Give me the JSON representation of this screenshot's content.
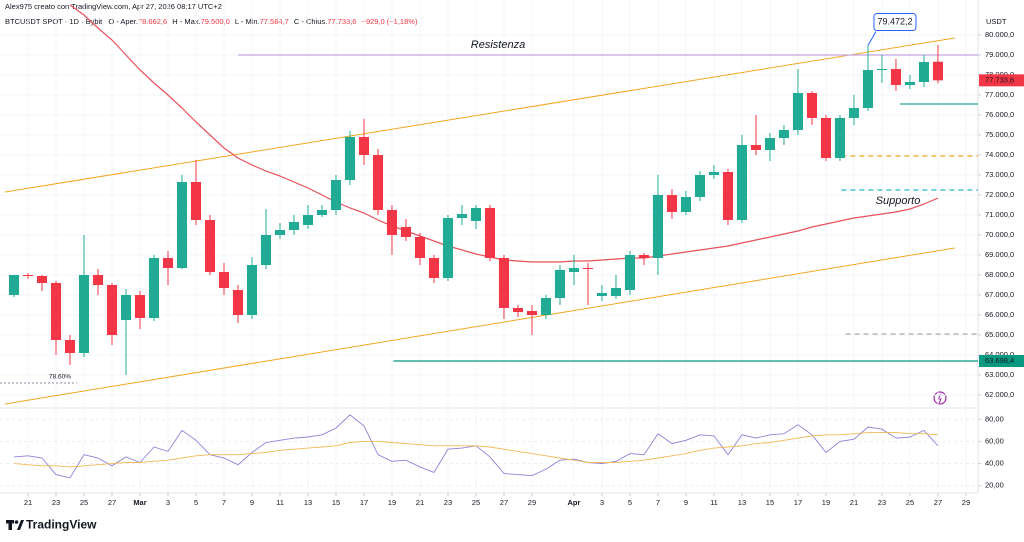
{
  "header": {
    "author_line": "Alex975 creato con TradingView.com, Apr 27, 2026 08:17 UTC+2",
    "symbol": "BTCUSDT SPOT · 1D · Bybit",
    "ohlc": [
      {
        "label": "O - Aper.",
        "value": "78.662,6"
      },
      {
        "label": "H - Max.",
        "value": "79.500,0"
      },
      {
        "label": "L - Min.",
        "value": "77.584,7"
      },
      {
        "label": "C - Chius.",
        "value": "77.733,6"
      }
    ],
    "change": "−929,0 (−1,18%)"
  },
  "footer": {
    "logo": "TradingView"
  },
  "chart_data": [
    {
      "type": "candlestick",
      "y_axis_title": "USDT",
      "up_color": "#22ab94",
      "down_color": "#f23645",
      "grid": true,
      "x": [
        -1,
        0,
        1,
        2,
        3,
        4,
        5,
        6,
        7,
        8,
        9,
        10,
        11,
        12,
        13,
        14,
        15,
        16,
        17,
        18,
        19,
        20,
        21,
        22,
        23,
        24,
        25,
        26,
        27,
        28,
        29,
        30,
        31,
        32,
        33,
        34,
        35,
        36,
        37,
        38,
        39,
        40,
        41,
        42,
        43,
        44,
        45,
        46,
        47,
        48,
        49,
        50,
        51,
        52,
        53,
        54,
        55,
        56,
        57,
        58,
        59,
        60,
        61,
        62,
        63,
        64,
        65
      ],
      "open": [
        67000,
        68000,
        67950,
        67600,
        64750,
        64100,
        68000,
        67500,
        65750,
        67000,
        65850,
        68850,
        68350,
        72650,
        70750,
        68150,
        67250,
        66000,
        68500,
        70000,
        70250,
        70500,
        71000,
        71250,
        72750,
        74900,
        74000,
        71250,
        70400,
        69900,
        68850,
        67850,
        70850,
        70700,
        71350,
        68850,
        66350,
        66200,
        66000,
        66850,
        68150,
        68350,
        66950,
        66950,
        67250,
        69000,
        68850,
        72000,
        71150,
        71900,
        73000,
        73150,
        70750,
        74500,
        74250,
        74850,
        75250,
        77100,
        75850,
        73850,
        75850,
        76350,
        78250,
        78300,
        77500,
        77650,
        78662.6
      ],
      "high": [
        68000,
        68100,
        68000,
        67700,
        65000,
        70000,
        68300,
        67600,
        67300,
        67200,
        69000,
        69200,
        73000,
        73750,
        71000,
        68600,
        67500,
        68900,
        71300,
        70600,
        71000,
        71500,
        71500,
        73000,
        75200,
        75800,
        74300,
        71500,
        70800,
        70100,
        69000,
        71000,
        71500,
        71500,
        71500,
        69000,
        66500,
        66500,
        67000,
        68500,
        69000,
        68600,
        67500,
        68000,
        69200,
        69100,
        73000,
        72300,
        72200,
        73200,
        73500,
        73300,
        75000,
        76000,
        75100,
        75500,
        78300,
        77200,
        76000,
        76000,
        77000,
        79472.2,
        79000,
        78800,
        78000,
        79000,
        79500
      ],
      "low": [
        66900,
        67800,
        67200,
        64000,
        63500,
        63900,
        67000,
        64500,
        63000,
        65300,
        65700,
        67500,
        68300,
        70500,
        68000,
        67000,
        65600,
        65800,
        68300,
        69800,
        70000,
        70300,
        70900,
        71000,
        72500,
        73500,
        71000,
        69000,
        69700,
        68500,
        67600,
        67700,
        70500,
        70300,
        68700,
        65800,
        65900,
        65000,
        65800,
        66500,
        67500,
        66500,
        66700,
        66800,
        67000,
        68500,
        68000,
        70800,
        71000,
        71700,
        72800,
        70500,
        70600,
        74000,
        73700,
        74500,
        75000,
        75500,
        73700,
        73700,
        75500,
        76200,
        77600,
        77200,
        77300,
        77400,
        77584.7
      ],
      "close": [
        68000,
        67950,
        67600,
        64750,
        64100,
        68000,
        67500,
        65000,
        67000,
        65850,
        68850,
        68350,
        72650,
        70750,
        68150,
        67350,
        66000,
        68500,
        70000,
        70250,
        70650,
        71000,
        71250,
        72750,
        74900,
        74000,
        71250,
        70000,
        69900,
        68850,
        67850,
        70850,
        71050,
        71350,
        68850,
        66350,
        66150,
        66000,
        66850,
        68250,
        68350,
        68300,
        67100,
        67350,
        69000,
        68850,
        72000,
        71150,
        71900,
        73000,
        73150,
        70750,
        74500,
        74250,
        74850,
        75250,
        77100,
        75850,
        73850,
        75850,
        76350,
        78250,
        78300,
        77500,
        77650,
        78650,
        77733.6
      ],
      "series": [
        {
          "color": "#e8505b",
          "values": [
            null,
            null,
            null,
            null,
            81500,
            81000,
            80350,
            79750,
            79000,
            78250,
            77600,
            77000,
            76350,
            75650,
            75000,
            74350,
            73850,
            73500,
            73200,
            72950,
            72650,
            72350,
            72000,
            71650,
            71350,
            71100,
            70750,
            70450,
            70200,
            69950,
            69700,
            69450,
            69250,
            69050,
            68900,
            68750,
            68700,
            68650,
            68650,
            68650,
            68700,
            68700,
            68750,
            68800,
            68850,
            68850,
            68950,
            69050,
            69150,
            69250,
            69350,
            69450,
            69600,
            69750,
            69900,
            70050,
            70200,
            70400,
            70550,
            70700,
            70850,
            70950,
            71050,
            71150,
            71300,
            71550,
            71850
          ]
        }
      ],
      "trendlines": [
        {
          "color": "#f5a623",
          "x": [
            -1.64,
            66.2
          ],
          "values": [
            72150,
            79850
          ]
        },
        {
          "color": "#f5a623",
          "x": [
            -1.64,
            66.2
          ],
          "values": [
            61550,
            69350
          ]
        }
      ],
      "hlines": [
        {
          "value": 79000,
          "from": 15,
          "color": "#c5a3e8",
          "dash": false
        },
        {
          "value": 76550,
          "from": 62.3,
          "color": "#26a69a",
          "dash": false
        },
        {
          "value": 73950,
          "from": 58.1,
          "color": "#f5a623",
          "dash": true
        },
        {
          "value": 72250,
          "from": 58.1,
          "color": "#26b5c9",
          "dash": true
        },
        {
          "value": 65050,
          "from": 58.4,
          "color": "#aaaaaa",
          "dash": true
        },
        {
          "value": 63698.4,
          "from": 26.1,
          "color": "#089981",
          "dash": false
        },
        {
          "value": 62600,
          "from": -2,
          "to": 3.5,
          "color": "#9aa4b8",
          "dash": true,
          "label": "78.60%"
        }
      ],
      "annotations": [
        {
          "text": "Resistenza",
          "color": "#9575cd"
        },
        {
          "text": "Supporto",
          "color": "#26b5c9"
        }
      ],
      "callout": {
        "x": 60,
        "value": 79472.2,
        "label": "79.472,2"
      },
      "price_labels": [
        {
          "value": 77733.6,
          "label": "77.733,6",
          "color": "#f23645"
        },
        {
          "value": 63698.4,
          "label": "63.698,4",
          "color": "#089981"
        }
      ],
      "xlim": [
        -2,
        67.86
      ],
      "xticks": [
        {
          "value": 0,
          "label": "21"
        },
        {
          "value": 2,
          "label": "23"
        },
        {
          "value": 4,
          "label": "25"
        },
        {
          "value": 6,
          "label": "27"
        },
        {
          "value": 8,
          "label": "Mar"
        },
        {
          "value": 10,
          "label": "3"
        },
        {
          "value": 12,
          "label": "5"
        },
        {
          "value": 14,
          "label": "7"
        },
        {
          "value": 16,
          "label": "9"
        },
        {
          "value": 18,
          "label": "11"
        },
        {
          "value": 20,
          "label": "13"
        },
        {
          "value": 22,
          "label": "15"
        },
        {
          "value": 24,
          "label": "17"
        },
        {
          "value": 26,
          "label": "19"
        },
        {
          "value": 28,
          "label": "21"
        },
        {
          "value": 30,
          "label": "23"
        },
        {
          "value": 32,
          "label": "25"
        },
        {
          "value": 34,
          "label": "27"
        },
        {
          "value": 36,
          "label": "29"
        },
        {
          "value": 39,
          "label": "Apr"
        },
        {
          "value": 41,
          "label": "3"
        },
        {
          "value": 43,
          "label": "5"
        },
        {
          "value": 45,
          "label": "7"
        },
        {
          "value": 47,
          "label": "9"
        },
        {
          "value": 49,
          "label": "11"
        },
        {
          "value": 51,
          "label": "13"
        },
        {
          "value": 53,
          "label": "15"
        },
        {
          "value": 55,
          "label": "17"
        },
        {
          "value": 57,
          "label": "19"
        },
        {
          "value": 59,
          "label": "21"
        },
        {
          "value": 61,
          "label": "23"
        },
        {
          "value": 63,
          "label": "25"
        },
        {
          "value": 65,
          "label": "27"
        },
        {
          "value": 67,
          "label": "29"
        }
      ],
      "ylim": [
        61500,
        81750
      ],
      "yticks": [
        {
          "value": 62000,
          "label": "62.000,0"
        },
        {
          "value": 63000,
          "label": "63.000,0"
        },
        {
          "value": 64000,
          "label": "64.000,0"
        },
        {
          "value": 65000,
          "label": "65.000,0"
        },
        {
          "value": 66000,
          "label": "66.000,0"
        },
        {
          "value": 67000,
          "label": "67.000,0"
        },
        {
          "value": 68000,
          "label": "68.000,0"
        },
        {
          "value": 69000,
          "label": "69.000,0"
        },
        {
          "value": 70000,
          "label": "70.000,0"
        },
        {
          "value": 71000,
          "label": "71.000,0"
        },
        {
          "value": 72000,
          "label": "72.000,0"
        },
        {
          "value": 73000,
          "label": "73.000,0"
        },
        {
          "value": 74000,
          "label": "74.000,0"
        },
        {
          "value": 75000,
          "label": "75.000,0"
        },
        {
          "value": 76000,
          "label": "76.000,0"
        },
        {
          "value": 77000,
          "label": "77.000,0"
        },
        {
          "value": 78000,
          "label": "78.000,0"
        },
        {
          "value": 79000,
          "label": "79.000,0"
        },
        {
          "value": 80000,
          "label": "80.000,0"
        }
      ]
    },
    {
      "type": "line",
      "grid": true,
      "x": [
        -1,
        0,
        1,
        2,
        3,
        4,
        5,
        6,
        7,
        8,
        9,
        10,
        11,
        12,
        13,
        14,
        15,
        16,
        17,
        18,
        19,
        20,
        21,
        22,
        23,
        24,
        25,
        26,
        27,
        28,
        29,
        30,
        31,
        32,
        33,
        34,
        35,
        36,
        37,
        38,
        39,
        40,
        41,
        42,
        43,
        44,
        45,
        46,
        47,
        48,
        49,
        50,
        51,
        52,
        53,
        54,
        55,
        56,
        57,
        58,
        59,
        60,
        61,
        62,
        63,
        64,
        65
      ],
      "series": [
        {
          "color": "#8f82d8",
          "values": [
            46,
            47,
            45,
            30,
            27,
            48,
            45,
            38,
            46,
            41,
            55,
            51,
            70,
            61,
            48,
            45,
            39,
            50,
            59,
            61,
            63,
            64,
            66,
            72,
            84,
            74,
            48,
            42,
            43,
            37,
            32,
            53,
            54,
            56,
            46,
            31,
            30,
            29,
            35,
            43,
            44,
            41,
            40,
            42,
            49,
            48,
            67,
            58,
            61,
            66,
            65,
            48,
            66,
            63,
            66,
            67,
            75,
            66,
            50,
            60,
            62,
            73,
            71,
            63,
            64,
            70,
            56
          ]
        },
        {
          "color": "#f2b957",
          "values": [
            40,
            39,
            38,
            38,
            37,
            38,
            39,
            40,
            41,
            41,
            42,
            43,
            45,
            47,
            48,
            48,
            48,
            49,
            50,
            52,
            53,
            54,
            55,
            56,
            59,
            60,
            60,
            59,
            58,
            57,
            56,
            56,
            56,
            56,
            55,
            53,
            51,
            49,
            47,
            45,
            43,
            41,
            41,
            41,
            42,
            43,
            45,
            47,
            49,
            52,
            54,
            55,
            56,
            58,
            59,
            61,
            63,
            65,
            66,
            66,
            67,
            68,
            68,
            68,
            67,
            67,
            66
          ]
        }
      ],
      "xlim": [
        -2,
        67.86
      ],
      "ylim": [
        14.3,
        90.2
      ],
      "yticks": [
        {
          "value": 20,
          "label": "20,00"
        },
        {
          "value": 40,
          "label": "40,00"
        },
        {
          "value": 60,
          "label": "60,00"
        },
        {
          "value": 80,
          "label": "80,00"
        }
      ]
    }
  ]
}
